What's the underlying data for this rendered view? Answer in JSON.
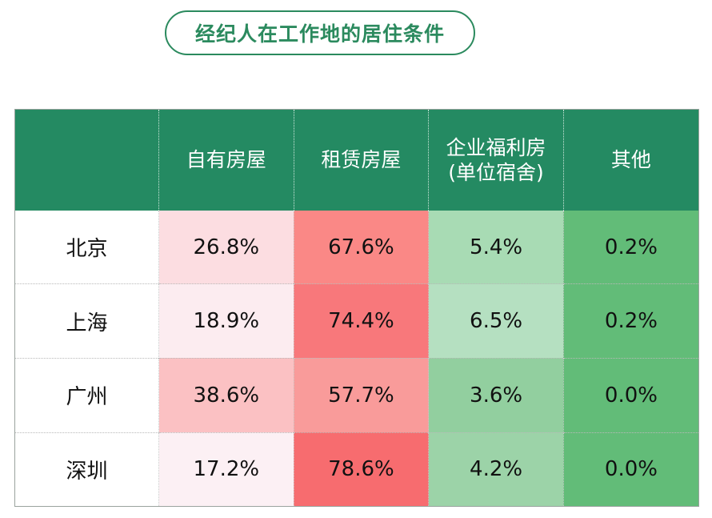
{
  "chart_data": {
    "type": "table",
    "title": "经纪人在工作地的居住条件",
    "columns": [
      "",
      "自有房屋",
      "租赁房屋",
      "企业福利房\n(单位宿舍)",
      "其他"
    ],
    "columns_display": [
      {
        "line1": "",
        "line2": ""
      },
      {
        "line1": "自有房屋",
        "line2": ""
      },
      {
        "line1": "租赁房屋",
        "line2": ""
      },
      {
        "line1": "企业福利房",
        "line2": "(单位宿舍)"
      },
      {
        "line1": "其他",
        "line2": ""
      }
    ],
    "rows": [
      {
        "city": "北京",
        "values": [
          "26.8%",
          "67.6%",
          "5.4%",
          "0.2%"
        ],
        "colors": [
          "#fcdde1",
          "#fa8886",
          "#a8dbb4",
          "#62bc78"
        ]
      },
      {
        "city": "上海",
        "values": [
          "18.9%",
          "74.4%",
          "6.5%",
          "0.2%"
        ],
        "colors": [
          "#fcecf0",
          "#f8787b",
          "#b5e0c1",
          "#62bc78"
        ]
      },
      {
        "city": "广州",
        "values": [
          "38.6%",
          "57.7%",
          "3.6%",
          "0.0%"
        ],
        "colors": [
          "#fbc1c3",
          "#f99b9a",
          "#92cf9f",
          "#62bc78"
        ]
      },
      {
        "city": "深圳",
        "values": [
          "17.2%",
          "78.6%",
          "4.2%",
          "0.0%"
        ],
        "colors": [
          "#fcf0f4",
          "#f76c6f",
          "#9cd3a8",
          "#62bc78"
        ]
      }
    ]
  }
}
